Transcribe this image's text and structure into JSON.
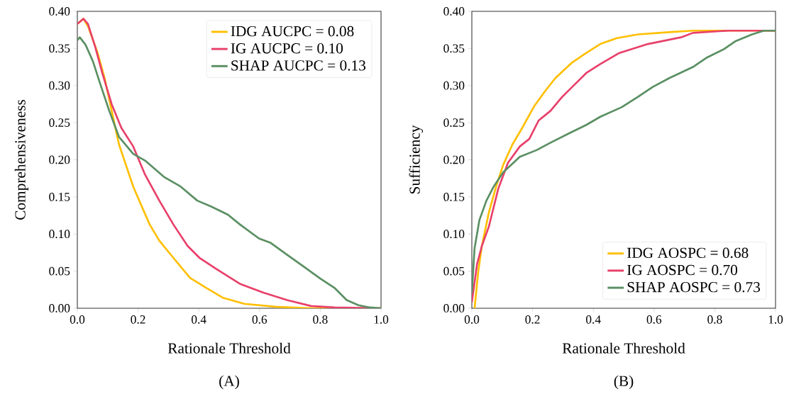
{
  "chart_data": [
    {
      "type": "line",
      "xlabel": "Rationale Threshold",
      "ylabel": "Comprehensiveness",
      "annotations": [
        "(A)"
      ],
      "legend": "top right",
      "grid": false,
      "line_style": "solid",
      "marker": "none",
      "xlim": [
        0,
        1
      ],
      "ylim": [
        0,
        0.4
      ],
      "xticks": [
        {
          "value": 0,
          "label": "0.0"
        },
        {
          "value": 0.2,
          "label": "0.2"
        },
        {
          "value": 0.4,
          "label": "0.4"
        },
        {
          "value": 0.6,
          "label": "0.6"
        },
        {
          "value": 0.8,
          "label": "0.8"
        },
        {
          "value": 1,
          "label": "1.0"
        }
      ],
      "yticks": [
        {
          "value": 0,
          "label": "0.00"
        },
        {
          "value": 0.05,
          "label": "0.05"
        },
        {
          "value": 0.1,
          "label": "0.10"
        },
        {
          "value": 0.15,
          "label": "0.15"
        },
        {
          "value": 0.2,
          "label": "0.20"
        },
        {
          "value": 0.25,
          "label": "0.25"
        },
        {
          "value": 0.3,
          "label": "0.30"
        },
        {
          "value": 0.35,
          "label": "0.35"
        },
        {
          "value": 0.4,
          "label": "0.40"
        }
      ],
      "series": [
        {
          "name": "IDG AUCPC = 0.08",
          "color": "#ffbf00",
          "x": [
            0,
            0.02,
            0.035,
            0.066,
            0.09,
            0.113,
            0.137,
            0.16,
            0.184,
            0.207,
            0.238,
            0.27,
            0.316,
            0.371,
            0.426,
            0.48,
            0.55,
            0.652,
            0.77,
            1
          ],
          "values": [
            0.383,
            0.39,
            0.38,
            0.345,
            0.31,
            0.266,
            0.221,
            0.193,
            0.164,
            0.142,
            0.113,
            0.091,
            0.068,
            0.041,
            0.027,
            0.014,
            0.006,
            0.002,
            0,
            0
          ]
        },
        {
          "name": "IG AUCPC = 0.10",
          "color": "#e8406a",
          "x": [
            0,
            0.02,
            0.035,
            0.059,
            0.082,
            0.113,
            0.145,
            0.184,
            0.223,
            0.27,
            0.316,
            0.363,
            0.402,
            0.457,
            0.535,
            0.613,
            0.691,
            0.77,
            0.848,
            1
          ],
          "values": [
            0.383,
            0.39,
            0.383,
            0.352,
            0.317,
            0.275,
            0.243,
            0.218,
            0.18,
            0.145,
            0.113,
            0.084,
            0.068,
            0.053,
            0.033,
            0.021,
            0.011,
            0.003,
            0.001,
            0
          ]
        },
        {
          "name": "SHAP AUCPC = 0.13",
          "color": "#5a8f63",
          "x": [
            0,
            0.008,
            0.027,
            0.051,
            0.074,
            0.105,
            0.137,
            0.184,
            0.223,
            0.285,
            0.34,
            0.395,
            0.441,
            0.496,
            0.535,
            0.598,
            0.637,
            0.691,
            0.746,
            0.8,
            0.848,
            0.887,
            0.926,
            0.965,
            1
          ],
          "values": [
            0.361,
            0.365,
            0.355,
            0.333,
            0.304,
            0.266,
            0.231,
            0.208,
            0.199,
            0.177,
            0.164,
            0.145,
            0.137,
            0.126,
            0.113,
            0.094,
            0.088,
            0.072,
            0.056,
            0.04,
            0.027,
            0.011,
            0.004,
            0.001,
            0
          ]
        }
      ]
    },
    {
      "type": "line",
      "xlabel": "Rationale Threshold",
      "ylabel": "Sufficiency",
      "annotations": [
        "(B)"
      ],
      "legend": "bottom right",
      "grid": false,
      "line_style": "solid",
      "marker": "none",
      "xlim": [
        0,
        1
      ],
      "ylim": [
        0,
        0.4
      ],
      "xticks": [
        {
          "value": 0,
          "label": "0.0"
        },
        {
          "value": 0.2,
          "label": "0.2"
        },
        {
          "value": 0.4,
          "label": "0.4"
        },
        {
          "value": 0.6,
          "label": "0.6"
        },
        {
          "value": 0.8,
          "label": "0.8"
        },
        {
          "value": 1,
          "label": "1.0"
        }
      ],
      "yticks": [
        {
          "value": 0,
          "label": "0.00"
        },
        {
          "value": 0.05,
          "label": "0.05"
        },
        {
          "value": 0.1,
          "label": "0.10"
        },
        {
          "value": 0.15,
          "label": "0.15"
        },
        {
          "value": 0.2,
          "label": "0.20"
        },
        {
          "value": 0.25,
          "label": "0.25"
        },
        {
          "value": 0.3,
          "label": "0.30"
        },
        {
          "value": 0.35,
          "label": "0.35"
        },
        {
          "value": 0.4,
          "label": "0.40"
        }
      ],
      "series": [
        {
          "name": "IDG AOSPC = 0.68",
          "color": "#ffbf00",
          "x": [
            0.009,
            0.021,
            0.033,
            0.056,
            0.08,
            0.103,
            0.134,
            0.166,
            0.205,
            0.244,
            0.275,
            0.33,
            0.377,
            0.423,
            0.478,
            0.548,
            0.65,
            0.728,
            1
          ],
          "values": [
            0,
            0.049,
            0.084,
            0.129,
            0.164,
            0.193,
            0.221,
            0.243,
            0.272,
            0.294,
            0.31,
            0.331,
            0.344,
            0.356,
            0.364,
            0.369,
            0.372,
            0.374,
            0.374
          ]
        },
        {
          "name": "IG AOSPC = 0.70",
          "color": "#e8406a",
          "x": [
            0,
            0.017,
            0.033,
            0.056,
            0.087,
            0.119,
            0.158,
            0.189,
            0.22,
            0.259,
            0.298,
            0.33,
            0.377,
            0.423,
            0.486,
            0.58,
            0.689,
            0.728,
            0.845,
            1
          ],
          "values": [
            0.008,
            0.059,
            0.084,
            0.11,
            0.161,
            0.196,
            0.218,
            0.228,
            0.253,
            0.266,
            0.285,
            0.298,
            0.317,
            0.329,
            0.344,
            0.356,
            0.365,
            0.371,
            0.374,
            0.374
          ]
        },
        {
          "name": "SHAP AOSPC = 0.73",
          "color": "#5a8f63",
          "x": [
            0,
            0.009,
            0.025,
            0.048,
            0.072,
            0.103,
            0.158,
            0.213,
            0.259,
            0.322,
            0.377,
            0.423,
            0.494,
            0.548,
            0.595,
            0.65,
            0.728,
            0.775,
            0.83,
            0.869,
            0.923,
            0.962,
            1
          ],
          "values": [
            0.021,
            0.081,
            0.119,
            0.145,
            0.164,
            0.183,
            0.204,
            0.213,
            0.223,
            0.236,
            0.247,
            0.258,
            0.271,
            0.285,
            0.298,
            0.31,
            0.325,
            0.338,
            0.349,
            0.36,
            0.369,
            0.374,
            0.374
          ]
        }
      ]
    }
  ]
}
